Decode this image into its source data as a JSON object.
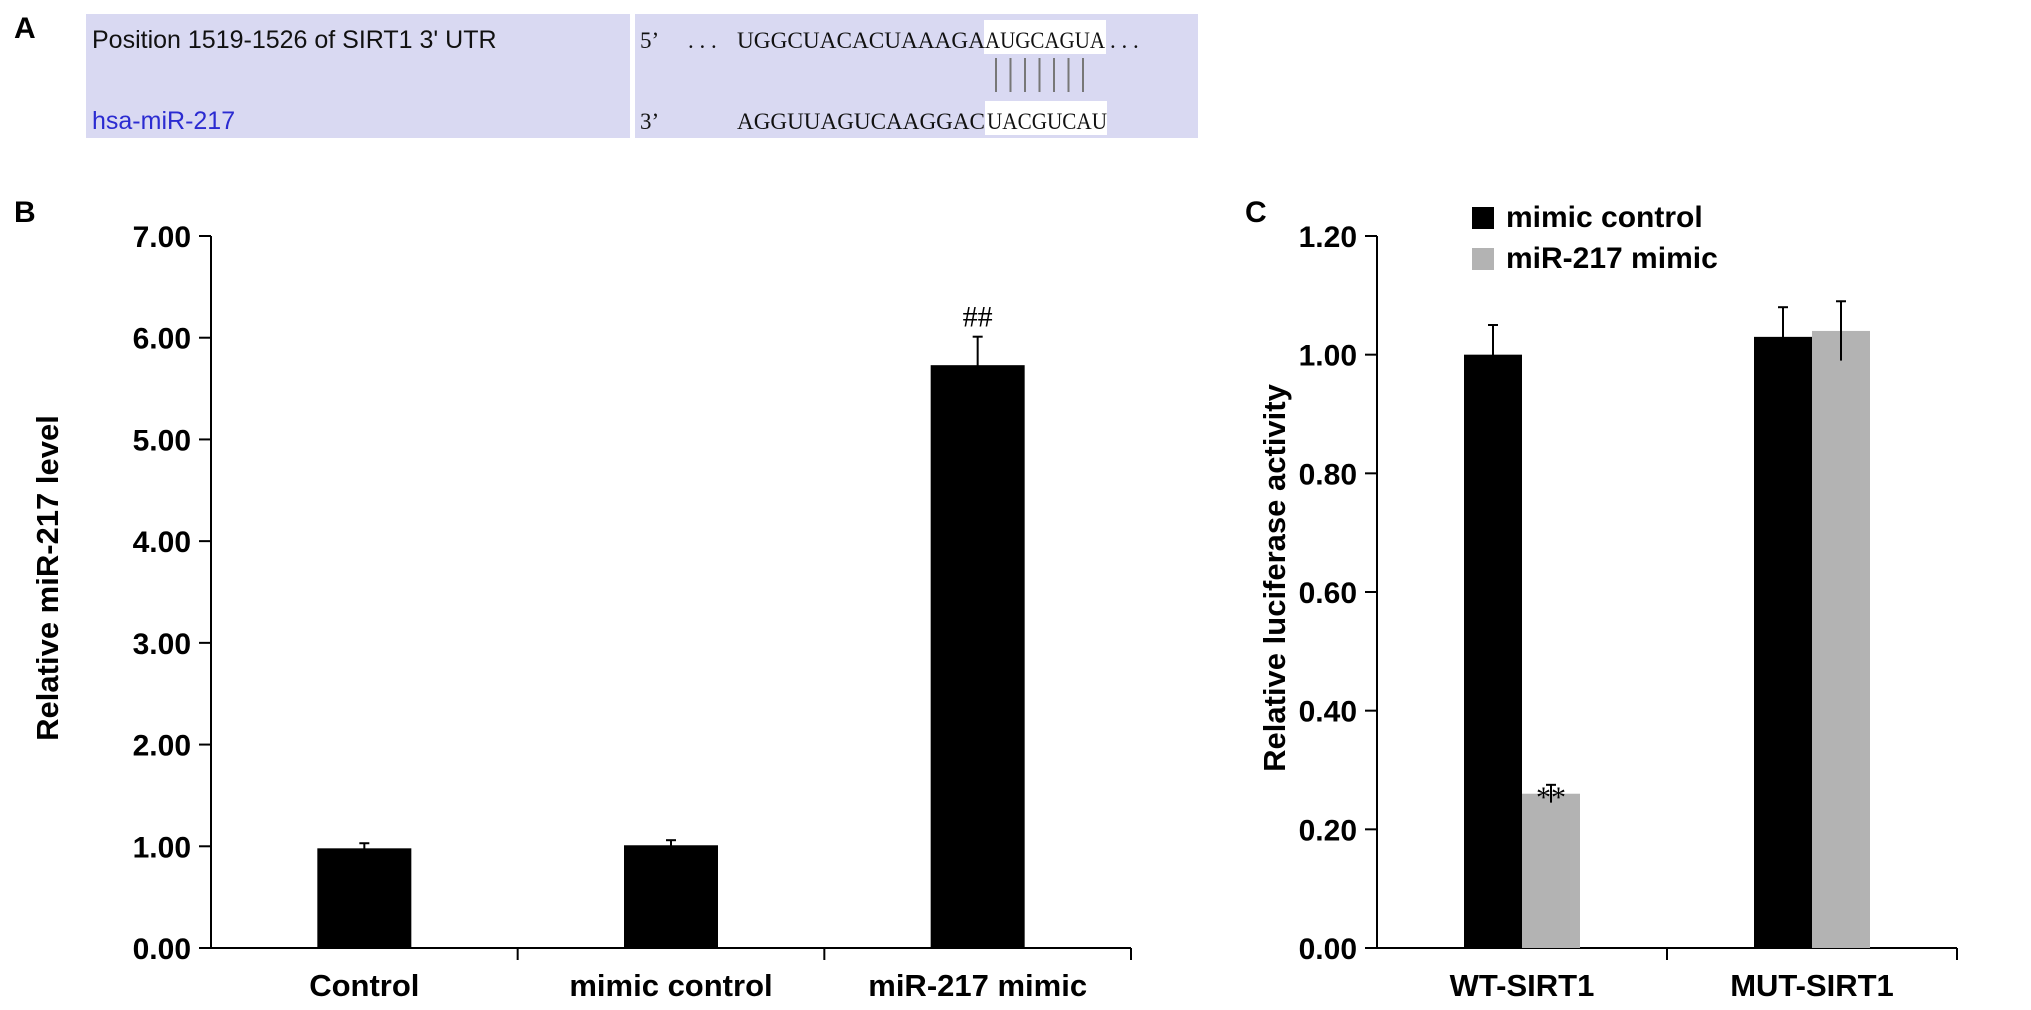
{
  "panels": {
    "a": {
      "letter": "A",
      "target_label": "Position 1519-1526 of SIRT1 3' UTR",
      "mirna_label": "hsa-miR-217",
      "target_prime": "5’",
      "mirna_prime": "3’",
      "target_dots_left": ". . .",
      "target_seq_plain": "UGGCUACACUAAAGA",
      "target_seq_seed": "AUGCAGUA",
      "target_dots_right": ". . .",
      "mirna_seq_plain": "AGGUUAGUCAAGGAC",
      "mirna_seq_seed": "UACGUCAU",
      "pair_count": 7,
      "colors": {
        "background": "#d9d9f2",
        "seed_highlight": "#ffffff",
        "mirna_label": "#2b2bd1"
      }
    },
    "b": {
      "letter": "B"
    },
    "c": {
      "letter": "C"
    }
  },
  "chart_data": [
    {
      "panel": "B",
      "type": "bar",
      "categories": [
        "Control",
        "mimic control",
        "miR-217 mimic"
      ],
      "series": [
        {
          "values": [
            0.98,
            1.01,
            5.73
          ],
          "errors": [
            0.05,
            0.05,
            0.28
          ],
          "color": "#000000"
        }
      ],
      "annotations": [
        {
          "category": 2,
          "text": "##"
        }
      ],
      "ylabel": "Relative miR-217 level",
      "ylim": [
        0,
        7
      ],
      "yticks": [
        "0.00",
        "1.00",
        "2.00",
        "3.00",
        "4.00",
        "5.00",
        "6.00",
        "7.00"
      ],
      "grid": false
    },
    {
      "panel": "C",
      "type": "bar",
      "categories": [
        "WT-SIRT1",
        "MUT-SIRT1"
      ],
      "series": [
        {
          "name": "mimic control",
          "values": [
            1.0,
            1.03
          ],
          "errors": [
            0.05,
            0.05
          ],
          "color": "#000000"
        },
        {
          "name": "miR-217 mimic",
          "values": [
            0.26,
            1.04
          ],
          "errors": [
            0.015,
            0.05
          ],
          "color": "#b3b3b3"
        }
      ],
      "annotations": [
        {
          "category": 0,
          "series": 1,
          "text": "**"
        }
      ],
      "ylabel": "Relative luciferase activity",
      "ylim": [
        0,
        1.2
      ],
      "yticks": [
        "0.00",
        "0.20",
        "0.40",
        "0.60",
        "0.80",
        "1.00",
        "1.20"
      ],
      "legend": "top-left",
      "grid": false
    }
  ]
}
